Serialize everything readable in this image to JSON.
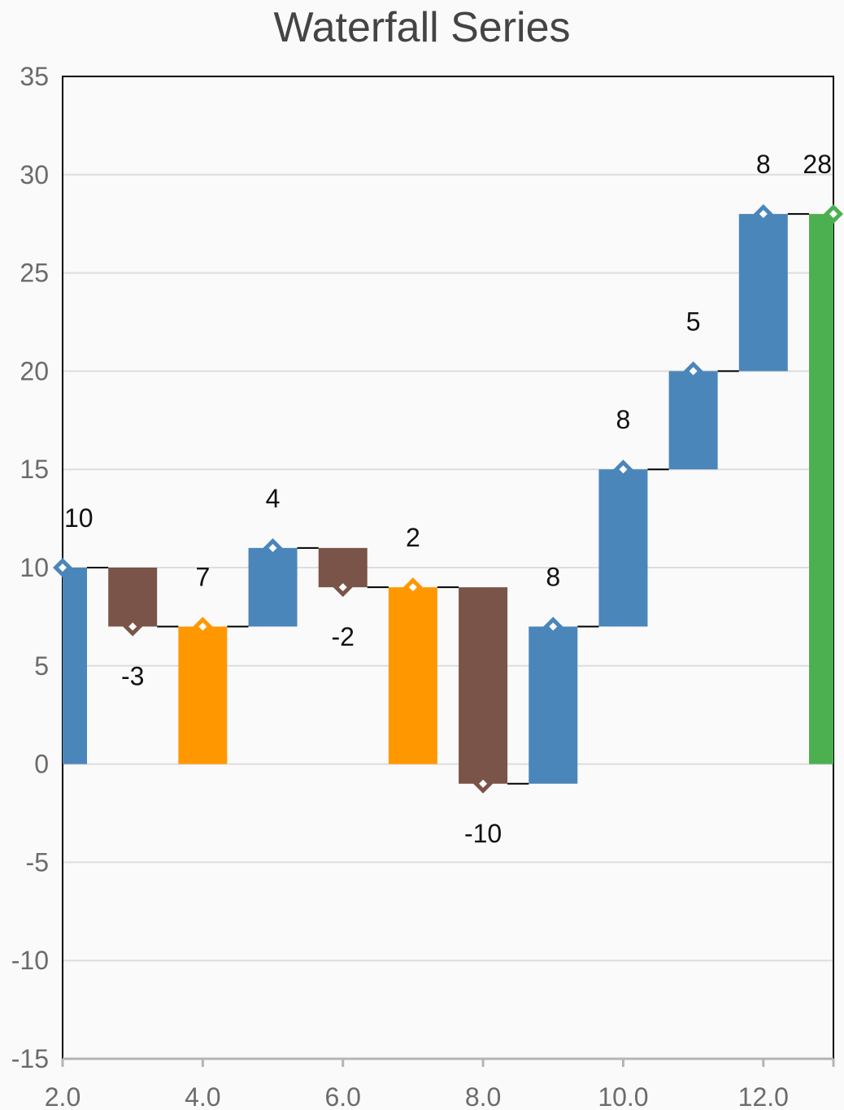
{
  "chart_data": {
    "type": "bar",
    "subtype": "waterfall",
    "title": "Waterfall Series",
    "xlabel": "",
    "ylabel": "",
    "xlim": [
      2.0,
      13.0
    ],
    "ylim": [
      -15,
      35
    ],
    "y_ticks": [
      35,
      30,
      25,
      20,
      15,
      10,
      5,
      0,
      -5,
      -10,
      -15
    ],
    "x_ticks": [
      2.0,
      4.0,
      6.0,
      8.0,
      10.0,
      12.0
    ],
    "x_tick_labels": [
      "2.0",
      "4.0",
      "6.0",
      "8.0",
      "10.0",
      "12.0"
    ],
    "y_tick_labels": [
      "35",
      "30",
      "25",
      "20",
      "15",
      "10",
      "5",
      "0",
      "-5",
      "-10",
      "-15"
    ],
    "grid": true,
    "colors": {
      "increase": "#4a86b9",
      "decrease": "#7a5448",
      "subtotal": "#ff9800",
      "total": "#4caf50",
      "connector": "#000000",
      "grid": "#dddddd",
      "axis": "#000000"
    },
    "points": [
      {
        "x": 2,
        "value": 10,
        "kind": "increase",
        "label": "10"
      },
      {
        "x": 3,
        "value": -3,
        "kind": "decrease",
        "label": "-3"
      },
      {
        "x": 4,
        "value": 7,
        "kind": "subtotal",
        "label": "7"
      },
      {
        "x": 5,
        "value": 4,
        "kind": "increase",
        "label": "4"
      },
      {
        "x": 6,
        "value": -2,
        "kind": "decrease",
        "label": "-2"
      },
      {
        "x": 7,
        "value": 2,
        "kind": "subtotal",
        "label": "2"
      },
      {
        "x": 8,
        "value": -10,
        "kind": "decrease",
        "label": "-10"
      },
      {
        "x": 9,
        "value": 8,
        "kind": "increase",
        "label": "8"
      },
      {
        "x": 10,
        "value": 8,
        "kind": "increase",
        "label": "8"
      },
      {
        "x": 11,
        "value": 5,
        "kind": "increase",
        "label": "5"
      },
      {
        "x": 12,
        "value": 8,
        "kind": "increase",
        "label": "8"
      },
      {
        "x": 13,
        "value": 28,
        "kind": "total",
        "label": "28"
      }
    ]
  }
}
